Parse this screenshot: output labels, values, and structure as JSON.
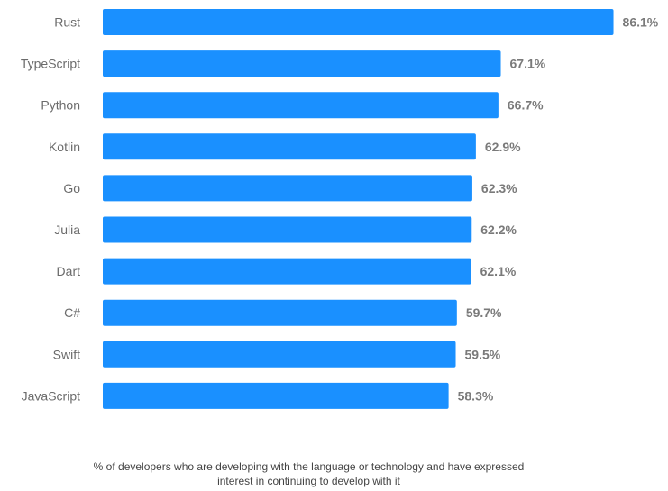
{
  "chart_data": {
    "type": "bar",
    "orientation": "horizontal",
    "categories": [
      "Rust",
      "TypeScript",
      "Python",
      "Kotlin",
      "Go",
      "Julia",
      "Dart",
      "C#",
      "Swift",
      "JavaScript"
    ],
    "values": [
      86.1,
      67.1,
      66.7,
      62.9,
      62.3,
      62.2,
      62.1,
      59.7,
      59.5,
      58.3
    ],
    "value_labels": [
      "86.1%",
      "67.1%",
      "66.7%",
      "62.9%",
      "62.3%",
      "62.2%",
      "62.1%",
      "59.7%",
      "59.5%",
      "58.3%"
    ],
    "bar_color": "#1a90ff",
    "grid": false,
    "legend": "none"
  },
  "caption": {
    "line1": "% of developers who are developing with the language or technology and have expressed",
    "line2": "interest in continuing to develop with it"
  }
}
